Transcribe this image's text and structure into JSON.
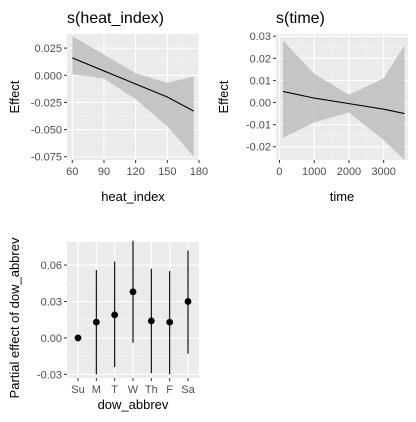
{
  "chart_data": [
    {
      "type": "line",
      "title": "s(heat_index)",
      "xlabel": "heat_index",
      "ylabel": "Effect",
      "xlim": [
        55,
        180
      ],
      "ylim": [
        -0.078,
        0.038
      ],
      "xticks": [
        60,
        90,
        120,
        150,
        180
      ],
      "yticks": [
        0.025,
        0.0,
        -0.025,
        -0.05,
        -0.075
      ],
      "ytick_labels": [
        "0.025",
        "0.000",
        "-0.025",
        "-0.050",
        "-0.075"
      ],
      "grid": true,
      "series": [
        {
          "x": [
            60,
            90,
            120,
            150,
            175
          ],
          "y": [
            0.016,
            0.004,
            -0.008,
            -0.02,
            -0.033
          ],
          "ci_upper": [
            0.036,
            0.019,
            0.002,
            -0.007,
            -0.001
          ],
          "ci_lower": [
            0.001,
            -0.003,
            -0.022,
            -0.047,
            -0.075
          ]
        }
      ]
    },
    {
      "type": "line",
      "title": "s(time)",
      "xlabel": "time",
      "ylabel": "Effect",
      "xlim": [
        -100,
        3700
      ],
      "ylim": [
        -0.026,
        0.031
      ],
      "xticks": [
        0,
        1000,
        2000,
        3000
      ],
      "yticks": [
        0.03,
        0.02,
        0.01,
        0.0,
        -0.01,
        -0.02
      ],
      "ytick_labels": [
        "0.03",
        "0.02",
        "0.01",
        "0.00",
        "-0.01",
        "-0.02"
      ],
      "grid": true,
      "series": [
        {
          "x": [
            100,
            1000,
            2000,
            3000,
            3600
          ],
          "y": [
            0.005,
            0.002,
            -0.0005,
            -0.003,
            -0.005
          ],
          "ci_upper": [
            0.028,
            0.013,
            0.0035,
            0.011,
            0.026
          ],
          "ci_lower": [
            -0.016,
            -0.009,
            -0.0045,
            -0.017,
            -0.026
          ]
        }
      ]
    },
    {
      "type": "scatter",
      "xlabel": "dow_abbrev",
      "ylabel": "Partial effect of dow_abbrev",
      "categories": [
        "Su",
        "M",
        "T",
        "W",
        "Th",
        "F",
        "Sa"
      ],
      "ylim": [
        -0.033,
        0.079
      ],
      "yticks": [
        0.06,
        0.03,
        0.0,
        -0.03
      ],
      "ytick_labels": [
        "0.06",
        "0.03",
        "0.00",
        "-0.03"
      ],
      "grid": true,
      "series": [
        {
          "values": [
            0.0,
            0.013,
            0.019,
            0.038,
            0.014,
            0.013,
            0.03
          ],
          "upper": [
            0.0,
            0.056,
            0.063,
            0.08,
            0.057,
            0.055,
            0.072
          ],
          "lower": [
            0.0,
            -0.03,
            -0.024,
            -0.004,
            -0.029,
            -0.03,
            -0.013
          ]
        }
      ]
    }
  ],
  "colors": {
    "panel_bg": "#ebebeb",
    "grid_major": "#ffffff",
    "grid_minor": "#f5f5f5",
    "ribbon": "#bebebe",
    "line": "#000000",
    "tick_text": "#4d4d4d"
  }
}
